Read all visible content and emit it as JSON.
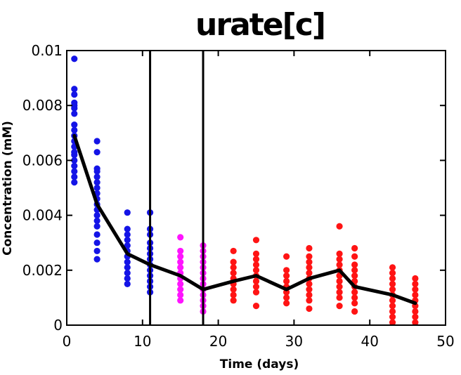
{
  "chart_data": {
    "type": "scatter",
    "title": "urate[c]",
    "xlabel": "Time (days)",
    "ylabel": "Concentration (mM)",
    "xlim": [
      0,
      50
    ],
    "ylim": [
      0,
      0.01
    ],
    "x_ticks": [
      "0",
      "10",
      "20",
      "30",
      "40",
      "50"
    ],
    "y_ticks": [
      "0",
      "0.002",
      "0.004",
      "0.006",
      "0.008",
      "0.01"
    ],
    "x_tick_values": [
      0,
      10,
      20,
      30,
      40,
      50
    ],
    "y_tick_values": [
      0,
      0.002,
      0.004,
      0.006,
      0.008,
      0.01
    ],
    "grid": false,
    "box": true,
    "vertical_lines_x": [
      11,
      18
    ],
    "colors": {
      "phase1": "#1414e6",
      "phase2": "#ff14ff",
      "phase3": "#ff1414",
      "mean_line": "#000000"
    },
    "series": [
      {
        "color": "#1414e6",
        "points": [
          [
            1,
            0.0097
          ],
          [
            1,
            0.0086
          ],
          [
            1,
            0.0084
          ],
          [
            1,
            0.0081
          ],
          [
            1,
            0.008
          ],
          [
            1,
            0.0079
          ],
          [
            1,
            0.0077
          ],
          [
            1,
            0.0073
          ],
          [
            1,
            0.0071
          ],
          [
            1,
            0.0069
          ],
          [
            1,
            0.0067
          ],
          [
            1,
            0.0065
          ],
          [
            1,
            0.0063
          ],
          [
            1,
            0.0062
          ],
          [
            1,
            0.006
          ],
          [
            1,
            0.0058
          ],
          [
            1,
            0.0056
          ],
          [
            1,
            0.0054
          ],
          [
            1,
            0.0052
          ],
          [
            4,
            0.0067
          ],
          [
            4,
            0.0063
          ],
          [
            4,
            0.0057
          ],
          [
            4,
            0.0056
          ],
          [
            4,
            0.0054
          ],
          [
            4,
            0.0052
          ],
          [
            4,
            0.005
          ],
          [
            4,
            0.0048
          ],
          [
            4,
            0.0046
          ],
          [
            4,
            0.0044
          ],
          [
            4,
            0.0042
          ],
          [
            4,
            0.004
          ],
          [
            4,
            0.0038
          ],
          [
            4,
            0.0036
          ],
          [
            4,
            0.0033
          ],
          [
            4,
            0.003
          ],
          [
            4,
            0.0027
          ],
          [
            4,
            0.0024
          ],
          [
            8,
            0.0041
          ],
          [
            8,
            0.0035
          ],
          [
            8,
            0.0033
          ],
          [
            8,
            0.0031
          ],
          [
            8,
            0.0029
          ],
          [
            8,
            0.0027
          ],
          [
            8,
            0.0025
          ],
          [
            8,
            0.0023
          ],
          [
            8,
            0.0021
          ],
          [
            8,
            0.0019
          ],
          [
            8,
            0.0017
          ],
          [
            8,
            0.0015
          ],
          [
            11,
            0.0041
          ],
          [
            11,
            0.0035
          ],
          [
            11,
            0.0033
          ],
          [
            11,
            0.003
          ],
          [
            11,
            0.0028
          ],
          [
            11,
            0.0026
          ],
          [
            11,
            0.0024
          ],
          [
            11,
            0.0022
          ],
          [
            11,
            0.002
          ],
          [
            11,
            0.0018
          ],
          [
            11,
            0.0016
          ],
          [
            11,
            0.0014
          ],
          [
            11,
            0.0012
          ]
        ]
      },
      {
        "color": "#ff14ff",
        "points": [
          [
            15,
            0.0032
          ],
          [
            15,
            0.0027
          ],
          [
            15,
            0.0025
          ],
          [
            15,
            0.0023
          ],
          [
            15,
            0.0021
          ],
          [
            15,
            0.0019
          ],
          [
            15,
            0.0017
          ],
          [
            15,
            0.0015
          ],
          [
            15,
            0.0013
          ],
          [
            15,
            0.0011
          ],
          [
            15,
            0.0009
          ],
          [
            18,
            0.0029
          ],
          [
            18,
            0.0027
          ],
          [
            18,
            0.0025
          ],
          [
            18,
            0.0023
          ],
          [
            18,
            0.0021
          ],
          [
            18,
            0.0019
          ],
          [
            18,
            0.0017
          ],
          [
            18,
            0.0015
          ],
          [
            18,
            0.0013
          ],
          [
            18,
            0.0011
          ],
          [
            18,
            0.0009
          ],
          [
            18,
            0.0007
          ],
          [
            18,
            0.0005
          ]
        ]
      },
      {
        "color": "#ff1414",
        "points": [
          [
            22,
            0.0027
          ],
          [
            22,
            0.0023
          ],
          [
            22,
            0.0021
          ],
          [
            22,
            0.0019
          ],
          [
            22,
            0.0017
          ],
          [
            22,
            0.0015
          ],
          [
            22,
            0.0013
          ],
          [
            22,
            0.0011
          ],
          [
            22,
            0.0009
          ],
          [
            25,
            0.0031
          ],
          [
            25,
            0.0026
          ],
          [
            25,
            0.0024
          ],
          [
            25,
            0.0022
          ],
          [
            25,
            0.002
          ],
          [
            25,
            0.0018
          ],
          [
            25,
            0.0016
          ],
          [
            25,
            0.0014
          ],
          [
            25,
            0.0012
          ],
          [
            25,
            0.0007
          ],
          [
            29,
            0.0025
          ],
          [
            29,
            0.002
          ],
          [
            29,
            0.0018
          ],
          [
            29,
            0.0016
          ],
          [
            29,
            0.0014
          ],
          [
            29,
            0.0012
          ],
          [
            29,
            0.001
          ],
          [
            29,
            0.0008
          ],
          [
            32,
            0.0028
          ],
          [
            32,
            0.0025
          ],
          [
            32,
            0.0023
          ],
          [
            32,
            0.0021
          ],
          [
            32,
            0.0019
          ],
          [
            32,
            0.0017
          ],
          [
            32,
            0.0015
          ],
          [
            32,
            0.0013
          ],
          [
            32,
            0.0011
          ],
          [
            32,
            0.0009
          ],
          [
            32,
            0.0006
          ],
          [
            36,
            0.0036
          ],
          [
            36,
            0.0026
          ],
          [
            36,
            0.0024
          ],
          [
            36,
            0.0022
          ],
          [
            36,
            0.002
          ],
          [
            36,
            0.0018
          ],
          [
            36,
            0.0016
          ],
          [
            36,
            0.0014
          ],
          [
            36,
            0.0012
          ],
          [
            36,
            0.001
          ],
          [
            36,
            0.0007
          ],
          [
            38,
            0.0028
          ],
          [
            38,
            0.0025
          ],
          [
            38,
            0.0022
          ],
          [
            38,
            0.002
          ],
          [
            38,
            0.0018
          ],
          [
            38,
            0.0016
          ],
          [
            38,
            0.0014
          ],
          [
            38,
            0.0012
          ],
          [
            38,
            0.001
          ],
          [
            38,
            0.0008
          ],
          [
            38,
            0.0005
          ],
          [
            43,
            0.0021
          ],
          [
            43,
            0.0019
          ],
          [
            43,
            0.0017
          ],
          [
            43,
            0.0015
          ],
          [
            43,
            0.0013
          ],
          [
            43,
            0.0011
          ],
          [
            43,
            0.0009
          ],
          [
            43,
            0.0007
          ],
          [
            43,
            0.0005
          ],
          [
            43,
            0.0003
          ],
          [
            43,
            0.0001
          ],
          [
            46,
            0.0017
          ],
          [
            46,
            0.0015
          ],
          [
            46,
            0.0013
          ],
          [
            46,
            0.0011
          ],
          [
            46,
            0.0009
          ],
          [
            46,
            0.0007
          ],
          [
            46,
            0.0005
          ],
          [
            46,
            0.0003
          ],
          [
            46,
            0.0001
          ]
        ]
      }
    ],
    "mean_line": {
      "color": "#000000",
      "x": [
        1,
        4,
        8,
        11,
        15,
        18,
        22,
        25,
        29,
        32,
        36,
        38,
        43,
        46
      ],
      "y": [
        0.0069,
        0.0044,
        0.0026,
        0.0022,
        0.0018,
        0.0013,
        0.0016,
        0.0018,
        0.0013,
        0.0017,
        0.002,
        0.0014,
        0.0011,
        0.0008
      ]
    }
  }
}
